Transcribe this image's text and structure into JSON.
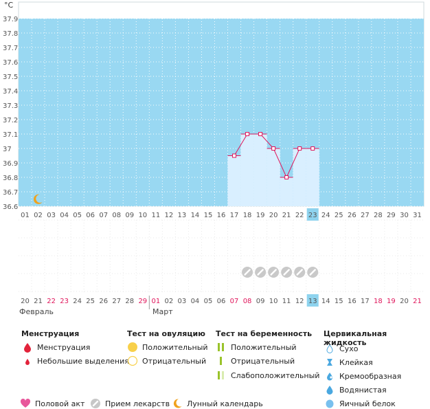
{
  "chart_data": {
    "type": "line",
    "y_unit": "°C",
    "ylim": [
      36.6,
      37.9
    ],
    "y_ticks": [
      "37.9",
      "37.8",
      "37.7",
      "37.6",
      "37.5",
      "37.4",
      "37.3",
      "37.2",
      "37.1",
      "37",
      "36.9",
      "36.8",
      "36.7",
      "36.6"
    ],
    "day_labels": [
      "01",
      "02",
      "03",
      "04",
      "05",
      "06",
      "07",
      "08",
      "09",
      "10",
      "11",
      "12",
      "13",
      "14",
      "15",
      "16",
      "17",
      "18",
      "19",
      "20",
      "21",
      "22",
      "23",
      "24",
      "25",
      "26",
      "27",
      "28",
      "29",
      "30",
      "31"
    ],
    "cycle_dates": [
      "20",
      "21",
      "22",
      "23",
      "24",
      "25",
      "26",
      "27",
      "28",
      "29",
      "01",
      "02",
      "03",
      "04",
      "05",
      "06",
      "07",
      "08",
      "09",
      "10",
      "11",
      "12",
      "13",
      "14",
      "15",
      "16",
      "17",
      "18",
      "19",
      "20",
      "21"
    ],
    "red_cycle_indices": [
      2,
      3,
      9,
      10,
      16,
      17,
      27,
      28,
      30
    ],
    "highlight_index": 22,
    "series": [
      {
        "x": [
          "17",
          "18",
          "19",
          "20",
          "21",
          "22",
          "23"
        ],
        "values": [
          36.95,
          37.1,
          37.1,
          37.0,
          36.8,
          37.0,
          37.0
        ]
      }
    ],
    "medication_days": [
      "18",
      "19",
      "20",
      "21",
      "22",
      "23"
    ],
    "moon_day": "02",
    "grid": true,
    "colors": {
      "background": "#99d8f2",
      "bar": "#d9efff",
      "line": "#e0145a",
      "pink": "#e0145a"
    }
  },
  "months": {
    "first": "Февраль",
    "second": "Март"
  },
  "legend": {
    "menstruation": {
      "title": "Менструация",
      "items": [
        "Менструация",
        "Небольшие выделения"
      ]
    },
    "ovulation": {
      "title": "Тест на овуляцию",
      "items": [
        "Положительный",
        "Отрицательный"
      ]
    },
    "pregnancy": {
      "title": "Тест на беременность",
      "items": [
        "Положительный",
        "Отрицательный",
        "Слабоположительный"
      ]
    },
    "cervical": {
      "title": "Цервикальная жидкость",
      "items": [
        "Сухо",
        "Клейкая",
        "Кремообразная",
        "Водянистая",
        "Яичный белок"
      ]
    },
    "bottom": [
      "Половой акт",
      "Прием лекарств",
      "Лунный календарь"
    ]
  }
}
